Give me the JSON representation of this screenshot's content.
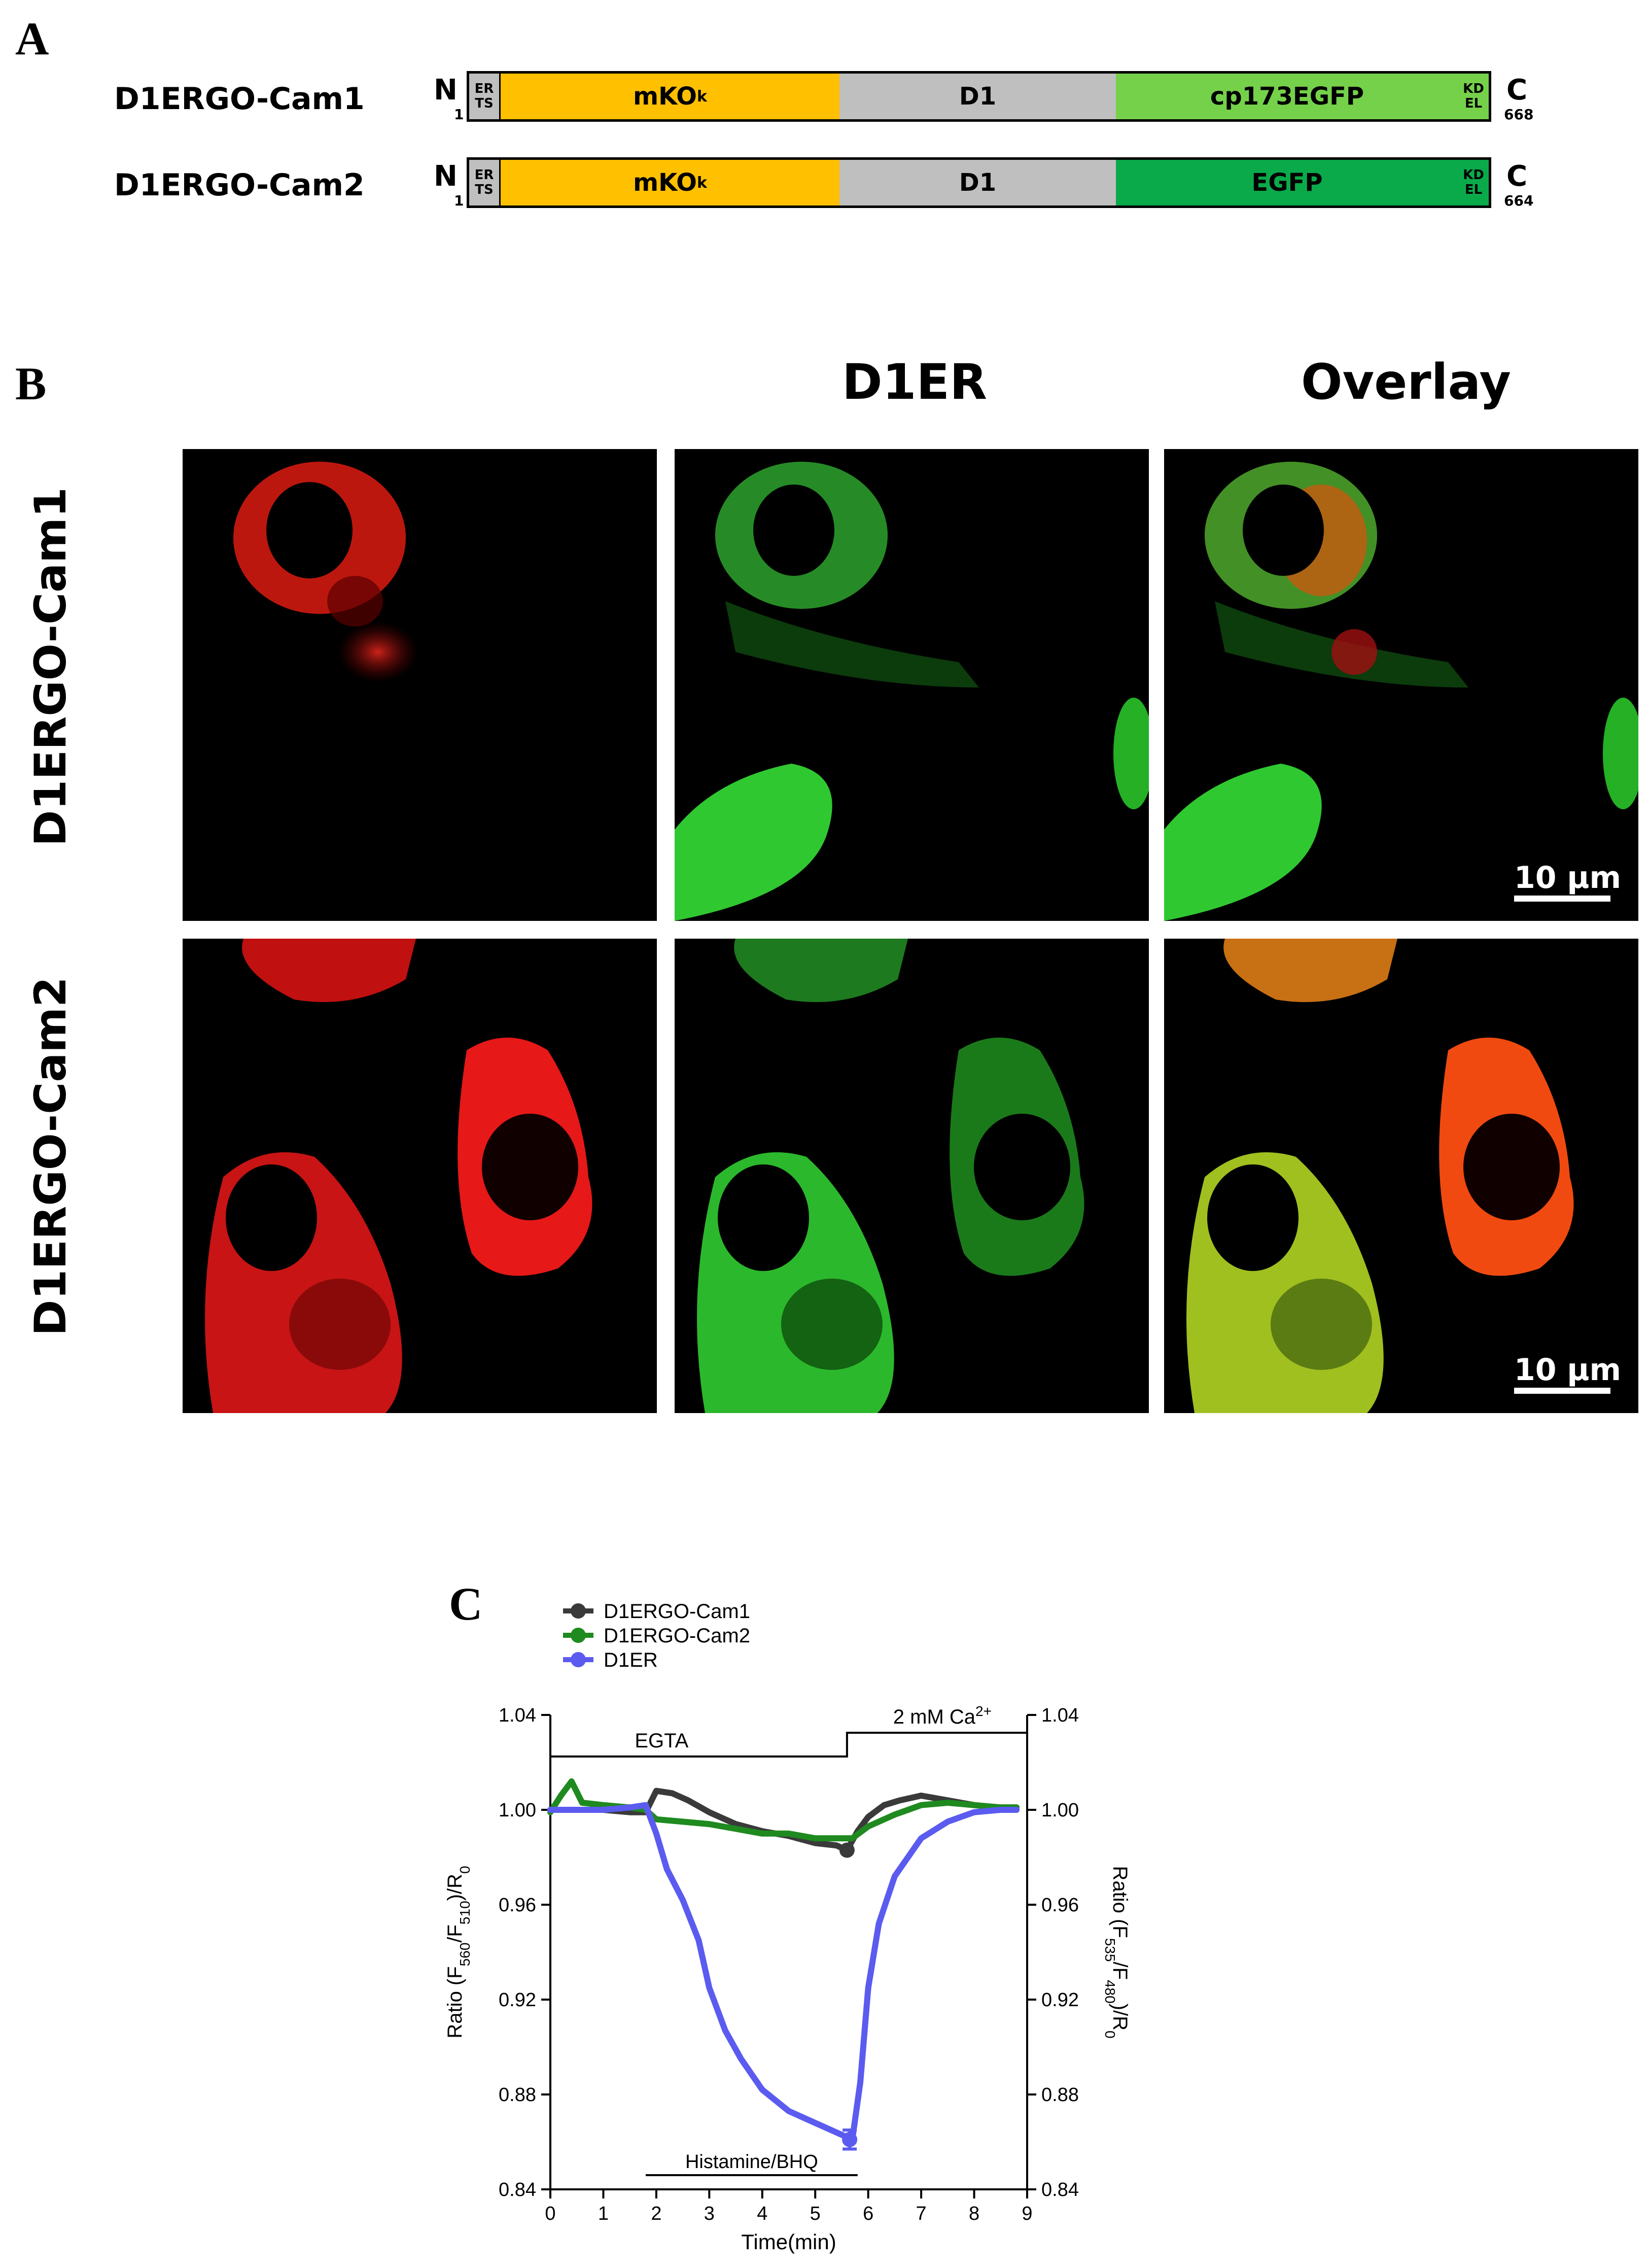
{
  "panel_a": {
    "letter": "A",
    "constructs": [
      {
        "name": "D1ERGO-Cam1",
        "n_term": "N",
        "c_term": "C",
        "start": "1",
        "end": "668",
        "segments": [
          {
            "label_top": "ER",
            "label_bottom": "TS",
            "color": "#bfbfbf"
          },
          {
            "label": "mKO",
            "sub": "k",
            "color": "#ffc000"
          },
          {
            "label": "D1",
            "color": "#bfbfbf"
          },
          {
            "label": "cp173EGFP",
            "color": "#75d14a"
          },
          {
            "label_top": "KD",
            "label_bottom": "EL",
            "color": "#75d14a"
          }
        ]
      },
      {
        "name": "D1ERGO-Cam2",
        "n_term": "N",
        "c_term": "C",
        "start": "1",
        "end": "664",
        "segments": [
          {
            "label_top": "ER",
            "label_bottom": "TS",
            "color": "#bfbfbf"
          },
          {
            "label": "mKO",
            "sub": "k",
            "color": "#ffc000"
          },
          {
            "label": "D1",
            "color": "#bfbfbf"
          },
          {
            "label": "EGFP",
            "color": "#0aaa4b"
          },
          {
            "label_top": "KD",
            "label_bottom": "EL",
            "color": "#0aaa4b"
          }
        ]
      }
    ]
  },
  "panel_b": {
    "letter": "B",
    "column_headers": [
      "",
      "D1ER",
      "Overlay"
    ],
    "row_labels": [
      "D1ERGO-Cam1",
      "D1ERGO-Cam2"
    ],
    "scale_bar": "10 µm"
  },
  "panel_c": {
    "letter": "C",
    "legend": [
      "D1ERGO-Cam1",
      "D1ERGO-Cam2",
      "D1ER"
    ],
    "annotations": {
      "egta": "EGTA",
      "calcium_prefix": "2 mM Ca",
      "calcium_sup": "2+",
      "histamine": "Histamine/BHQ"
    },
    "xlabel": "Time(min)",
    "ylabel_left_prefix": "Ratio (F",
    "ylabel_left_sub1": "560",
    "ylabel_left_mid": "/F",
    "ylabel_left_sub2": "510",
    "ylabel_left_suffix": ")/R",
    "ylabel_left_sub3": "0",
    "ylabel_right_prefix": "Ratio (F",
    "ylabel_right_sub1": "535",
    "ylabel_right_mid": "/F",
    "ylabel_right_sub2": "480",
    "ylabel_right_suffix": ")/R",
    "ylabel_right_sub3": "0"
  },
  "chart_data": {
    "type": "line",
    "title": "",
    "xlabel": "Time(min)",
    "ylabel": "Ratio (F560/F510)/R0",
    "ylabel_right": "Ratio (F535/F480)/R0",
    "xlim": [
      0,
      9
    ],
    "ylim": [
      0.84,
      1.04
    ],
    "x_ticks": [
      0,
      1,
      2,
      3,
      4,
      5,
      6,
      7,
      8,
      9
    ],
    "y_ticks": [
      0.84,
      0.88,
      0.92,
      0.96,
      1.0,
      1.04
    ],
    "y_tick_labels": [
      "0.84",
      "0.88",
      "0.92",
      "0.96",
      "1.00",
      "1.04"
    ],
    "legend_position": "top-left",
    "series": [
      {
        "name": "D1ERGO-Cam1",
        "color": "#3a3a3a",
        "x": [
          0,
          0.5,
          1,
          1.5,
          1.8,
          2.0,
          2.3,
          2.6,
          3.0,
          3.5,
          4.0,
          4.5,
          5.0,
          5.4,
          5.6,
          5.8,
          6.0,
          6.3,
          6.6,
          7.0,
          7.5,
          8.0,
          8.5,
          8.8
        ],
        "y": [
          1.0,
          1.0,
          1.0,
          0.999,
          0.999,
          1.008,
          1.007,
          1.004,
          0.999,
          0.994,
          0.991,
          0.989,
          0.986,
          0.985,
          0.983,
          0.991,
          0.997,
          1.002,
          1.004,
          1.006,
          1.004,
          1.002,
          1.001,
          1.001
        ]
      },
      {
        "name": "D1ERGO-Cam2",
        "color": "#1f8a1f",
        "x": [
          0,
          0.2,
          0.4,
          0.6,
          1.0,
          1.5,
          1.8,
          2.0,
          2.5,
          3.0,
          3.5,
          4.0,
          4.5,
          5.0,
          5.5,
          5.7,
          6.0,
          6.5,
          7.0,
          7.5,
          8.0,
          8.5,
          8.8
        ],
        "y": [
          0.999,
          1.006,
          1.012,
          1.003,
          1.002,
          1.001,
          1.0,
          0.996,
          0.995,
          0.994,
          0.992,
          0.99,
          0.99,
          0.988,
          0.988,
          0.988,
          0.993,
          0.998,
          1.002,
          1.003,
          1.002,
          1.001,
          1.001
        ]
      },
      {
        "name": "D1ER",
        "color": "#5b5bf0",
        "x": [
          0,
          0.5,
          1,
          1.5,
          1.8,
          2.0,
          2.2,
          2.5,
          2.8,
          3.0,
          3.3,
          3.6,
          4.0,
          4.5,
          5.0,
          5.4,
          5.6,
          5.7,
          5.85,
          6.0,
          6.2,
          6.5,
          7.0,
          7.5,
          8.0,
          8.5,
          8.8
        ],
        "y": [
          1.0,
          1.0,
          1.0,
          1.001,
          1.002,
          0.99,
          0.975,
          0.962,
          0.945,
          0.925,
          0.907,
          0.895,
          0.882,
          0.873,
          0.868,
          0.864,
          0.862,
          0.861,
          0.885,
          0.925,
          0.952,
          0.972,
          0.988,
          0.995,
          0.999,
          1.0,
          1.0
        ]
      }
    ],
    "error_bars": [
      {
        "series": "D1ER",
        "x": 5.65,
        "y": 0.861,
        "err": 0.004
      }
    ],
    "annotations": [
      {
        "text": "EGTA",
        "x_range": [
          0,
          5.6
        ]
      },
      {
        "text": "2 mM Ca2+",
        "x_range": [
          5.6,
          9
        ]
      },
      {
        "text": "Histamine/BHQ",
        "x_range": [
          1.8,
          5.8
        ]
      }
    ]
  }
}
